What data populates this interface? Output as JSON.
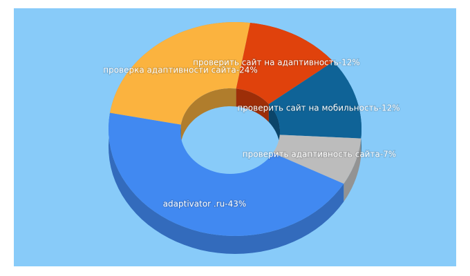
{
  "chart_data": {
    "type": "pie3d",
    "donut": true,
    "values": [
      12,
      12,
      7,
      43,
      24
    ],
    "value_labels": [
      "проверить сайт на адаптивность-12%",
      "проверить сайт на мобильность-12%",
      "проверить адаптивность сайта-7%",
      "adaptivator .ru-43%",
      "проверка адаптивности сайта-24%"
    ],
    "colors": [
      "#e0420c",
      "#0f6397",
      "#bcbcbc",
      "#4189f1",
      "#fbb33f"
    ]
  }
}
